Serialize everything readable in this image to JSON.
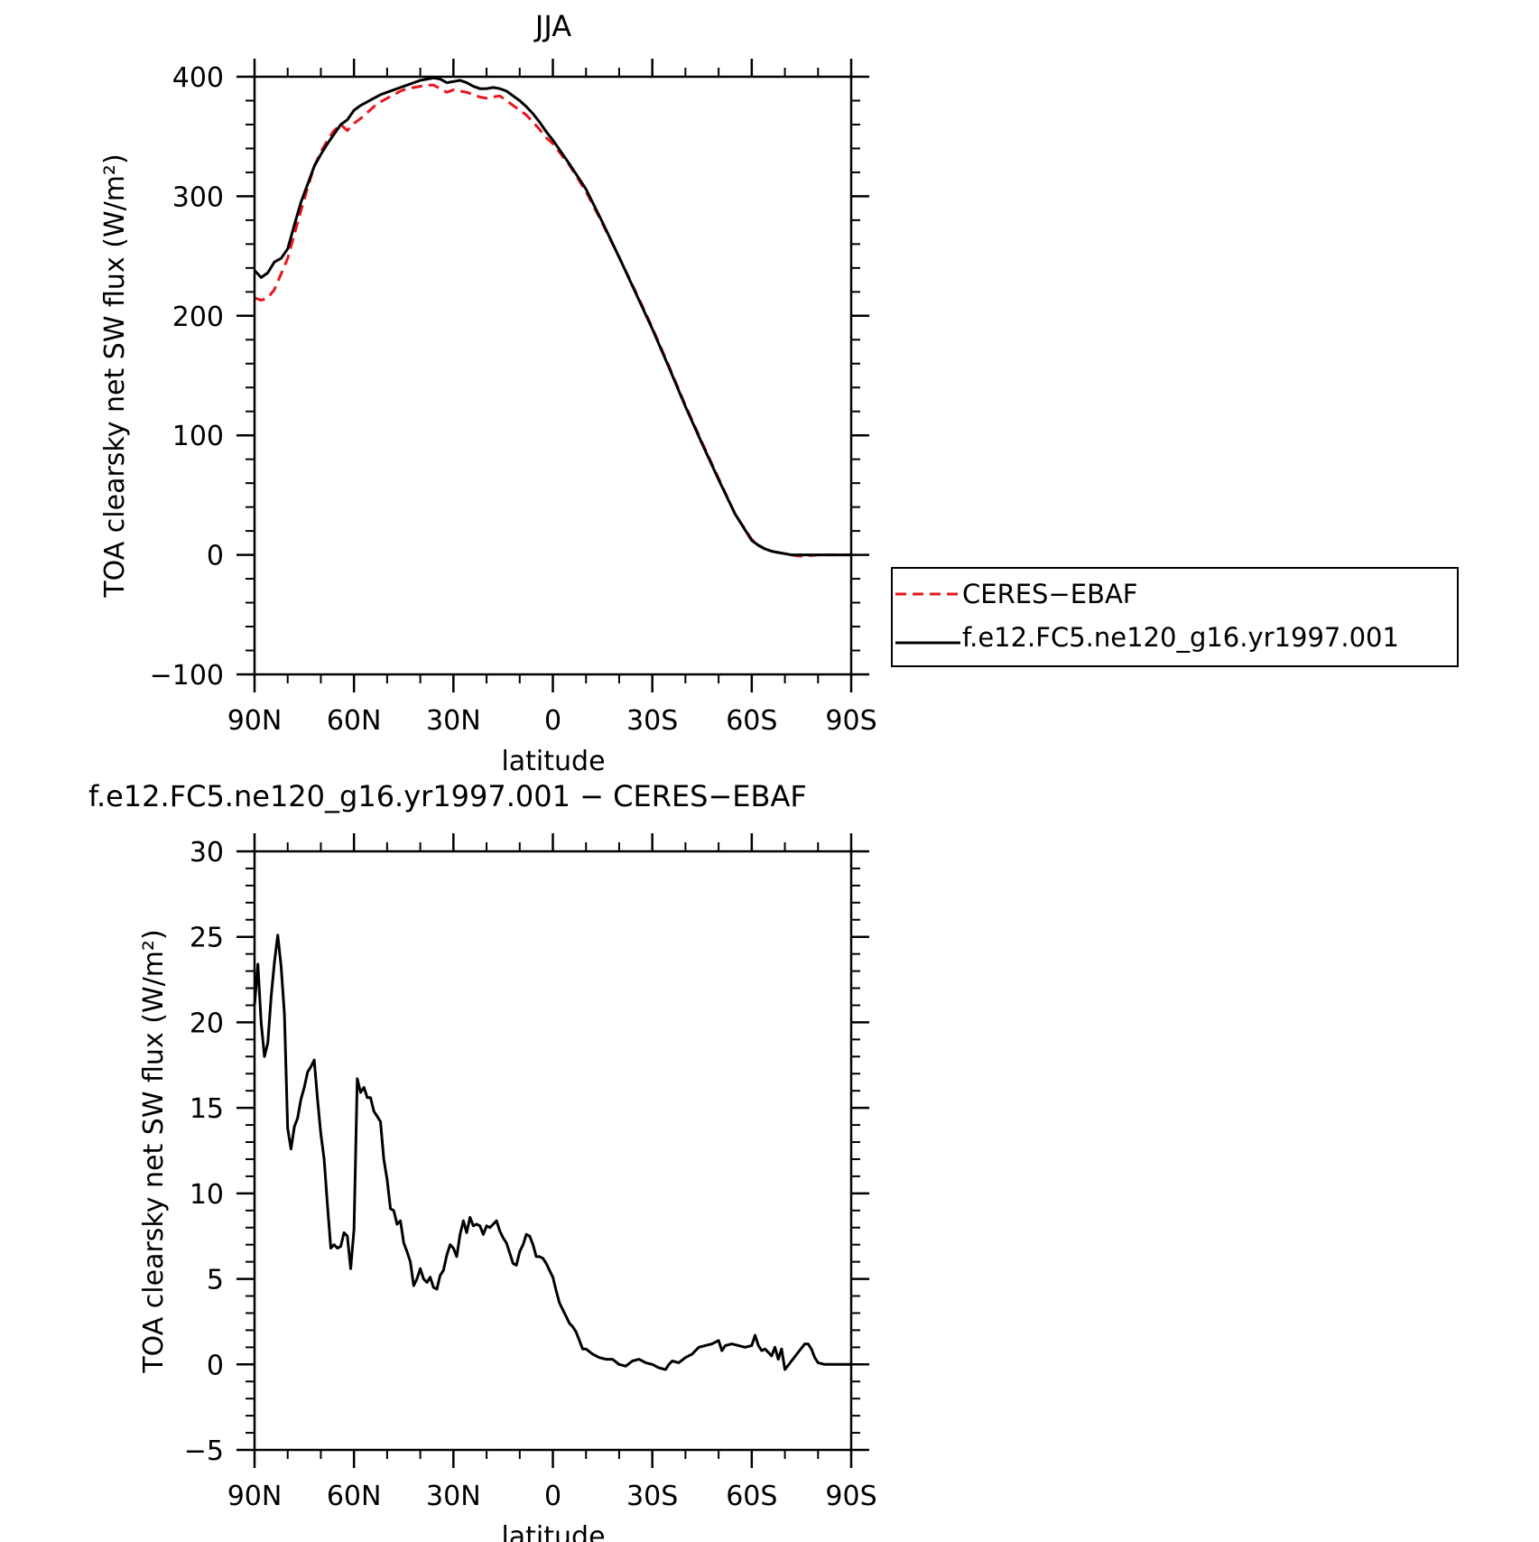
{
  "chart_data": [
    {
      "type": "line",
      "title": "JJA",
      "xlabel": "latitude",
      "ylabel": "TOA clearsky net SW flux (W/m²)",
      "xlim": [
        90,
        -90
      ],
      "ylim": [
        -100,
        400
      ],
      "x_ticks": [
        90,
        60,
        30,
        0,
        -30,
        -60,
        -90
      ],
      "x_tick_labels": [
        "90N",
        "60N",
        "30N",
        "0",
        "30S",
        "60S",
        "90S"
      ],
      "y_ticks": [
        -100,
        0,
        100,
        200,
        300,
        400
      ],
      "y_tick_labels": [
        "−100",
        "0",
        "100",
        "200",
        "300",
        "400"
      ],
      "grid": false,
      "legend_placement": "outside-right",
      "series": [
        {
          "name": "CERES−EBAF",
          "color": "#e8161d",
          "dash": "dashed",
          "x": [
            90,
            88,
            86,
            84,
            82,
            80,
            78,
            76,
            74,
            72,
            70,
            68,
            66,
            64,
            62,
            60,
            58,
            56,
            54,
            52,
            50,
            48,
            46,
            44,
            42,
            40,
            38,
            36,
            34,
            32,
            30,
            28,
            26,
            24,
            22,
            20,
            18,
            16,
            14,
            12,
            10,
            8,
            6,
            4,
            2,
            0,
            -5,
            -10,
            -15,
            -20,
            -25,
            -30,
            -35,
            -40,
            -45,
            -50,
            -55,
            -60,
            -62,
            -64,
            -66,
            -68,
            -70,
            -72,
            -74,
            -76,
            -80,
            -85,
            -90
          ],
          "y": [
            215,
            213,
            215,
            222,
            235,
            248,
            268,
            288,
            307,
            325,
            337,
            347,
            355,
            360,
            355,
            361,
            365,
            370,
            375,
            379,
            382,
            385,
            388,
            390,
            391,
            392,
            393,
            393,
            390,
            387,
            389,
            388,
            387,
            385,
            383,
            382,
            383,
            384,
            380,
            376,
            372,
            368,
            362,
            356,
            349,
            344,
            326,
            304,
            277,
            249,
            220,
            190,
            158,
            125,
            94,
            64,
            34,
            13,
            8,
            5,
            3,
            2,
            1,
            0,
            -1,
            -1,
            0,
            0,
            0
          ]
        },
        {
          "name": "f.e12.FC5.ne120_g16.yr1997.001",
          "color": "#000000",
          "dash": "solid",
          "x": [
            90,
            88,
            86,
            84,
            82,
            80,
            78,
            76,
            74,
            72,
            70,
            68,
            66,
            64,
            62,
            60,
            58,
            56,
            54,
            52,
            50,
            48,
            46,
            44,
            42,
            40,
            38,
            36,
            34,
            32,
            30,
            28,
            26,
            24,
            22,
            20,
            18,
            16,
            14,
            12,
            10,
            8,
            6,
            4,
            2,
            0,
            -5,
            -10,
            -15,
            -20,
            -25,
            -30,
            -35,
            -40,
            -45,
            -50,
            -55,
            -60,
            -62,
            -64,
            -66,
            -68,
            -70,
            -72,
            -74,
            -76,
            -80,
            -85,
            -90
          ],
          "y": [
            238,
            232,
            236,
            245,
            248,
            256,
            276,
            295,
            310,
            325,
            335,
            344,
            352,
            360,
            364,
            372,
            376,
            379,
            382,
            385,
            387,
            389,
            391,
            393,
            395,
            397,
            398,
            399,
            398,
            395,
            396,
            397,
            395,
            392,
            390,
            390,
            391,
            390,
            388,
            384,
            380,
            375,
            369,
            362,
            354,
            347,
            327,
            306,
            278,
            249,
            219,
            189,
            157,
            124,
            93,
            63,
            34,
            12,
            8,
            5,
            3,
            2,
            1,
            0,
            0,
            0,
            0,
            0,
            0
          ]
        }
      ]
    },
    {
      "type": "line",
      "title": "f.e12.FC5.ne120_g16.yr1997.001 − CERES−EBAF",
      "xlabel": "latitude",
      "ylabel": "TOA clearsky net SW flux (W/m²)",
      "xlim": [
        90,
        -90
      ],
      "ylim": [
        -5,
        30
      ],
      "x_ticks": [
        90,
        60,
        30,
        0,
        -30,
        -60,
        -90
      ],
      "x_tick_labels": [
        "90N",
        "60N",
        "30N",
        "0",
        "30S",
        "60S",
        "90S"
      ],
      "y_ticks": [
        -5,
        0,
        5,
        10,
        15,
        20,
        25,
        30
      ],
      "y_tick_labels": [
        "−5",
        "0",
        "5",
        "10",
        "15",
        "20",
        "25",
        "30"
      ],
      "grid": false,
      "series": [
        {
          "color": "#000000",
          "dash": "solid",
          "x": [
            90,
            89,
            88,
            87,
            86,
            85,
            84,
            83,
            82,
            81,
            80,
            79,
            78,
            77,
            76,
            75,
            74,
            73,
            72,
            71,
            70,
            69,
            68,
            67,
            66,
            65,
            64,
            63,
            62,
            61,
            60,
            59,
            58,
            57,
            56,
            55,
            54,
            53,
            52,
            51,
            50,
            49,
            48,
            47,
            46,
            45,
            44,
            43,
            42,
            41,
            40,
            39,
            38,
            37,
            36,
            35,
            34,
            33,
            32,
            31,
            30,
            29,
            28,
            27,
            26,
            25,
            24,
            23,
            22,
            21,
            20,
            19,
            18,
            17,
            16,
            15,
            14,
            13,
            12,
            11,
            10,
            9,
            8,
            7,
            6,
            5,
            4,
            3,
            2,
            1,
            0,
            -1,
            -2,
            -3,
            -4,
            -5,
            -6,
            -7,
            -8,
            -9,
            -10,
            -12,
            -14,
            -16,
            -18,
            -20,
            -22,
            -24,
            -26,
            -28,
            -30,
            -32,
            -34,
            -35,
            -36,
            -38,
            -40,
            -42,
            -44,
            -46,
            -48,
            -50,
            -51,
            -52,
            -54,
            -56,
            -58,
            -60,
            -61,
            -62,
            -63,
            -64,
            -66,
            -67,
            -68,
            -69,
            -70,
            -72,
            -74,
            -76,
            -77,
            -78,
            -79,
            -80,
            -82,
            -85,
            -90
          ],
          "y": [
            21.0,
            23.4,
            20.0,
            18.0,
            18.8,
            21.5,
            23.5,
            25.1,
            23.3,
            20.5,
            13.8,
            12.6,
            13.9,
            14.4,
            15.5,
            16.2,
            17.1,
            17.4,
            17.8,
            15.5,
            13.5,
            12.0,
            9.3,
            6.8,
            7.0,
            6.8,
            6.9,
            7.7,
            7.5,
            5.6,
            7.9,
            16.7,
            15.9,
            16.2,
            15.6,
            15.6,
            14.8,
            14.5,
            14.2,
            12.0,
            10.8,
            9.1,
            9.0,
            8.2,
            8.4,
            7.1,
            6.6,
            6.0,
            4.6,
            5.0,
            5.6,
            5.0,
            4.8,
            5.1,
            4.5,
            4.4,
            5.2,
            5.5,
            6.4,
            7.0,
            6.8,
            6.3,
            7.6,
            8.4,
            7.7,
            8.6,
            8.1,
            8.2,
            8.1,
            7.6,
            8.1,
            8.0,
            8.2,
            8.4,
            7.8,
            7.4,
            7.1,
            6.5,
            5.9,
            5.8,
            6.6,
            7.0,
            7.6,
            7.5,
            7.0,
            6.3,
            6.3,
            6.2,
            5.9,
            5.5,
            5.1,
            4.3,
            3.6,
            3.2,
            2.8,
            2.4,
            2.2,
            1.9,
            1.4,
            0.9,
            0.9,
            0.6,
            0.4,
            0.3,
            0.3,
            0.0,
            -0.1,
            0.2,
            0.3,
            0.1,
            0.0,
            -0.2,
            -0.3,
            0.0,
            0.2,
            0.1,
            0.4,
            0.6,
            1.0,
            1.1,
            1.2,
            1.4,
            0.8,
            1.1,
            1.2,
            1.1,
            1.0,
            1.1,
            1.7,
            1.1,
            0.8,
            0.9,
            0.5,
            1.0,
            0.3,
            0.9,
            -0.3,
            0.2,
            0.7,
            1.2,
            1.2,
            0.9,
            0.4,
            0.1,
            0.0,
            0.0,
            0.0
          ]
        }
      ]
    }
  ]
}
